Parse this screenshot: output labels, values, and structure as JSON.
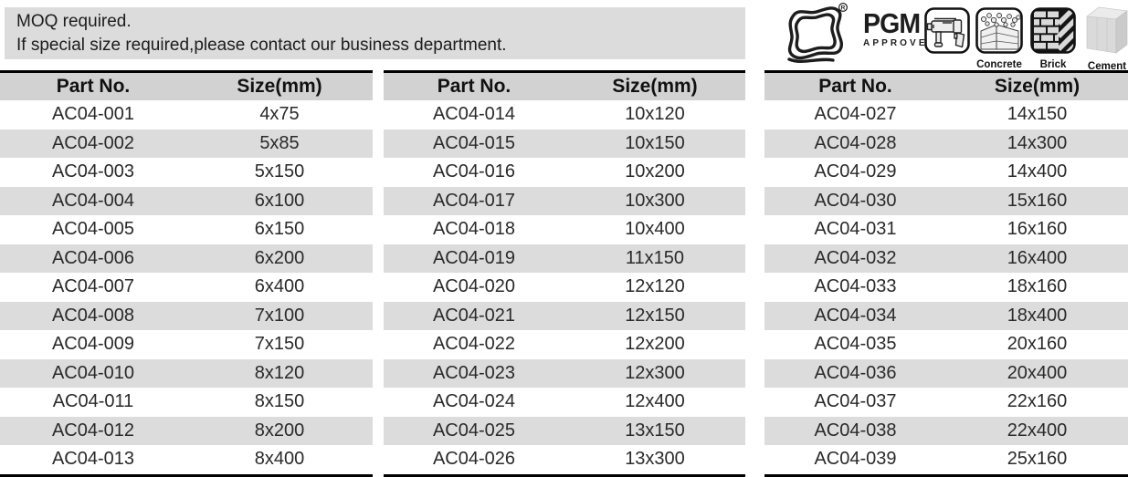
{
  "notice": {
    "line1": "MOQ required.",
    "line2": "If special size required,please contact our business department."
  },
  "brand": {
    "name": "PGM",
    "subtitle": "APPROVED",
    "registered": "R"
  },
  "materials": {
    "concrete": "Concrete",
    "brick": "Brick",
    "cement": "Cement"
  },
  "table_headers": {
    "part": "Part No.",
    "size": "Size(mm)"
  },
  "tables": [
    {
      "rows": [
        [
          "AC04-001",
          "4x75"
        ],
        [
          "AC04-002",
          "5x85"
        ],
        [
          "AC04-003",
          "5x150"
        ],
        [
          "AC04-004",
          "6x100"
        ],
        [
          "AC04-005",
          "6x150"
        ],
        [
          "AC04-006",
          "6x200"
        ],
        [
          "AC04-007",
          "6x400"
        ],
        [
          "AC04-008",
          "7x100"
        ],
        [
          "AC04-009",
          "7x150"
        ],
        [
          "AC04-010",
          "8x120"
        ],
        [
          "AC04-011",
          "8x150"
        ],
        [
          "AC04-012",
          "8x200"
        ],
        [
          "AC04-013",
          "8x400"
        ]
      ]
    },
    {
      "rows": [
        [
          "AC04-014",
          "10x120"
        ],
        [
          "AC04-015",
          "10x150"
        ],
        [
          "AC04-016",
          "10x200"
        ],
        [
          "AC04-017",
          "10x300"
        ],
        [
          "AC04-018",
          "10x400"
        ],
        [
          "AC04-019",
          "11x150"
        ],
        [
          "AC04-020",
          "12x120"
        ],
        [
          "AC04-021",
          "12x150"
        ],
        [
          "AC04-022",
          "12x200"
        ],
        [
          "AC04-023",
          "12x300"
        ],
        [
          "AC04-024",
          "12x400"
        ],
        [
          "AC04-025",
          "13x150"
        ],
        [
          "AC04-026",
          "13x300"
        ]
      ]
    },
    {
      "rows": [
        [
          "AC04-027",
          "14x150"
        ],
        [
          "AC04-028",
          "14x300"
        ],
        [
          "AC04-029",
          "14x400"
        ],
        [
          "AC04-030",
          "15x160"
        ],
        [
          "AC04-031",
          "16x160"
        ],
        [
          "AC04-032",
          "16x400"
        ],
        [
          "AC04-033",
          "18x160"
        ],
        [
          "AC04-034",
          "18x400"
        ],
        [
          "AC04-035",
          "20x160"
        ],
        [
          "AC04-036",
          "20x400"
        ],
        [
          "AC04-037",
          "22x160"
        ],
        [
          "AC04-038",
          "22x400"
        ],
        [
          "AC04-039",
          "25x160"
        ]
      ]
    }
  ],
  "colors": {
    "notice_bg": "#dcdcdc",
    "header_bg": "#d2d2d2",
    "row_stripe": "#dcdcdc",
    "rule": "#000000",
    "text": "#222222"
  }
}
